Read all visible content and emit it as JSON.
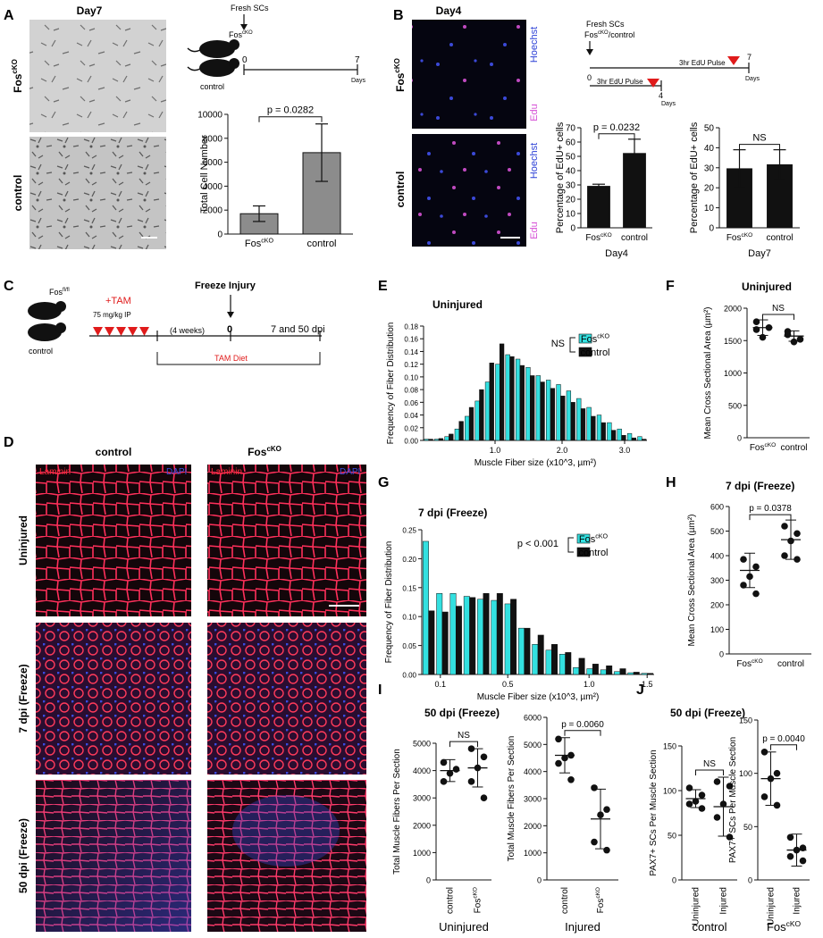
{
  "panels": [
    {
      "id": "A",
      "letter": "A"
    },
    {
      "id": "B",
      "letter": "B"
    },
    {
      "id": "C",
      "letter": "C"
    },
    {
      "id": "D",
      "letter": "D"
    },
    {
      "id": "E",
      "letter": "E"
    },
    {
      "id": "F",
      "letter": "F"
    },
    {
      "id": "G",
      "letter": "G"
    },
    {
      "id": "H",
      "letter": "H"
    },
    {
      "id": "I",
      "letter": "I"
    },
    {
      "id": "J",
      "letter": "J"
    }
  ],
  "colors": {
    "cyan": "#33e0e0",
    "black": "#111111",
    "gray": "#8c8c8c",
    "red": "#e01b1b",
    "magenta": "#d64fd6",
    "blue": "#2a3fd6",
    "laminin": "#ff2a3a",
    "dapi": "#3a4be0"
  },
  "text": {
    "A": {
      "day": "Day7",
      "row1": "Fos",
      "row1_sup": "cKO",
      "row2": "control",
      "fresh": "Fresh SCs",
      "t0": "0",
      "t7": "7",
      "days": "Days",
      "mouse1": "Fos",
      "mouse1_sup": "cKO",
      "mouse2": "control"
    },
    "B": {
      "day": "Day4",
      "row1": "Fos",
      "row1_sup": "cKO",
      "row2": "control",
      "hoechst": "Hoechst",
      "edu": "Edu",
      "fresh": "Fresh SCs",
      "fresh2": "Fos",
      "fresh2_sup": "cKO",
      "fresh2_tail": "/control",
      "pulse1": "3hr EdU Pulse",
      "pulse2": "3hr EdU Pulse",
      "t0": "0",
      "t4": "4",
      "t7": "7",
      "days1": "Days",
      "days2": "Days"
    },
    "C": {
      "mouse": "Fos",
      "mouse_sup": "fl/fl",
      "tam": "+TAM",
      "dose": "75 mg/kg IP",
      "mouse2": "control",
      "weeks": "(4 weeks)",
      "injury": "Freeze Injury",
      "t0": "0",
      "dpi": "7 and 50 dpi",
      "diet": "TAM Diet"
    },
    "D": {
      "col1": "control",
      "col2": "Fos",
      "col2_sup": "cKO",
      "row1": "Uninjured",
      "row2": "7 dpi (Freeze)",
      "row3": "50 dpi (Freeze)",
      "laminin": "Laminin",
      "dapi": "DAPI"
    }
  },
  "chart_data": [
    {
      "panel": "A",
      "type": "bar",
      "categories": [
        "Fos^cKO",
        "control"
      ],
      "values": [
        1700,
        6800
      ],
      "errors": [
        650,
        2400
      ],
      "ylabel": "Total Cell Number",
      "ylim": [
        0,
        10000
      ],
      "yticks": [
        "0",
        "2000",
        "4000",
        "6000",
        "8000",
        "10000"
      ],
      "annotation": "p = 0.0282"
    },
    {
      "panel": "B",
      "type": "bar",
      "categories": [
        "Fos^cKO",
        "control"
      ],
      "values": [
        29,
        52
      ],
      "errors": [
        1.5,
        10
      ],
      "ylabel": "Percentage of EdU+ cells",
      "ylim": [
        0,
        70
      ],
      "yticks": [
        "0",
        "10",
        "20",
        "30",
        "40",
        "50",
        "60",
        "70"
      ],
      "xlabel": "Day4",
      "annotation": "p = 0.0232"
    },
    {
      "panel": "B",
      "type": "bar",
      "categories": [
        "Fos^cKO",
        "control"
      ],
      "values": [
        29.5,
        31.5
      ],
      "errors": [
        9.5,
        7.5
      ],
      "ylabel": "Percentage of EdU+ cells",
      "ylim": [
        0,
        50
      ],
      "yticks": [
        "0",
        "10",
        "20",
        "30",
        "40",
        "50"
      ],
      "xlabel": "Day7",
      "annotation": "NS"
    },
    {
      "panel": "E",
      "type": "bar",
      "title": "Uninjured",
      "xlabel": "Muscle Fiber size (x10^3, µm²)",
      "ylabel": "Frequency of Fiber Distribution",
      "ylim": [
        0,
        0.18
      ],
      "yticks": [
        "0.00",
        "0.02",
        "0.04",
        "0.06",
        "0.08",
        "0.10",
        "0.12",
        "0.14",
        "0.16",
        "0.18"
      ],
      "xticks": [
        "1.0",
        "2.0",
        "3.0"
      ],
      "series": [
        {
          "name": "Fos^cKO",
          "values": [
            0.002,
            0.002,
            0.006,
            0.018,
            0.038,
            0.062,
            0.092,
            0.12,
            0.135,
            0.128,
            0.115,
            0.102,
            0.095,
            0.088,
            0.078,
            0.066,
            0.052,
            0.04,
            0.028,
            0.018,
            0.011,
            0.006
          ]
        },
        {
          "name": "control",
          "values": [
            0.002,
            0.003,
            0.01,
            0.03,
            0.052,
            0.08,
            0.122,
            0.152,
            0.132,
            0.118,
            0.102,
            0.092,
            0.082,
            0.07,
            0.06,
            0.05,
            0.038,
            0.028,
            0.016,
            0.008,
            0.004,
            0.002
          ]
        }
      ],
      "annotation": "NS"
    },
    {
      "panel": "F",
      "type": "scatter",
      "title": "Uninjured",
      "categories": [
        "Fos^cKO",
        "control"
      ],
      "points": [
        [
          1790,
          1700,
          1550,
          1670
        ],
        [
          1640,
          1520,
          1480,
          1590
        ]
      ],
      "means": [
        1700,
        1570
      ],
      "sd": [
        120,
        80
      ],
      "ylabel": "Mean Cross Sectional Area (µm²)",
      "ylim": [
        0,
        2000
      ],
      "yticks": [
        "0",
        "500",
        "1000",
        "1500",
        "2000"
      ],
      "annotation": "NS"
    },
    {
      "panel": "G",
      "type": "bar",
      "title": "7 dpi (Freeze)",
      "xlabel": "Muscle Fiber size (x10^3, µm²)",
      "ylabel": "Frequency of Fiber Distribution",
      "ylim": [
        0,
        0.25
      ],
      "yticks": [
        "0.00",
        "0.05",
        "0.10",
        "0.15",
        "0.20",
        "0.25"
      ],
      "xticks": [
        "0.1",
        "0.5",
        "1.0",
        "1.5"
      ],
      "series": [
        {
          "name": "Fos^cKO",
          "values": [
            0.23,
            0.14,
            0.14,
            0.135,
            0.13,
            0.128,
            0.122,
            0.08,
            0.052,
            0.042,
            0.035,
            0.012,
            0.01,
            0.008,
            0.005,
            0.003,
            0.002
          ]
        },
        {
          "name": "control",
          "values": [
            0.11,
            0.108,
            0.118,
            0.133,
            0.14,
            0.14,
            0.13,
            0.08,
            0.068,
            0.052,
            0.038,
            0.028,
            0.018,
            0.015,
            0.01,
            0.004,
            0.002
          ]
        }
      ],
      "annotation": "p < 0.001"
    },
    {
      "panel": "H",
      "type": "scatter",
      "title": "7 dpi (Freeze)",
      "categories": [
        "Fos^cKO",
        "control"
      ],
      "points": [
        [
          385,
          355,
          315,
          280,
          245
        ],
        [
          520,
          490,
          460,
          400,
          385
        ]
      ],
      "means": [
        340,
        465
      ],
      "sd": [
        70,
        80
      ],
      "ylabel": "Mean Cross Sectional Area (µm²)",
      "ylim": [
        0,
        600
      ],
      "yticks": [
        "0",
        "100",
        "200",
        "300",
        "400",
        "500",
        "600"
      ],
      "annotation": "p = 0.0378"
    },
    {
      "panel": "I",
      "type": "scatter",
      "title": "50 dpi (Freeze)",
      "categories": [
        "control",
        "Fos^cKO"
      ],
      "points": [
        [
          4300,
          4050,
          3900,
          3600
        ],
        [
          4800,
          4500,
          4100,
          3600,
          3000
        ]
      ],
      "means": [
        4000,
        4100
      ],
      "sd": [
        400,
        700
      ],
      "ylabel": "Total Muscle Fibers Per Section",
      "ylim": [
        0,
        5000
      ],
      "yticks": [
        "0",
        "1000",
        "2000",
        "3000",
        "4000",
        "5000"
      ],
      "xlabel": "Uninjured",
      "annotation": "NS"
    },
    {
      "panel": "I",
      "type": "scatter",
      "categories": [
        "control",
        "Fos^cKO"
      ],
      "points": [
        [
          5200,
          4600,
          4500,
          4300,
          3700
        ],
        [
          3400,
          2600,
          2400,
          1400,
          1100
        ]
      ],
      "means": [
        4600,
        2250
      ],
      "sd": [
        650,
        1100
      ],
      "ylabel": "Total Muscle Fibers Per Section",
      "ylim": [
        0,
        6000
      ],
      "yticks": [
        "0",
        "1000",
        "2000",
        "3000",
        "4000",
        "5000",
        "6000"
      ],
      "xlabel": "Injured",
      "annotation": "p = 0.0060"
    },
    {
      "panel": "J",
      "type": "scatter",
      "title": "50 dpi (Freeze)",
      "categories": [
        "Uninjured",
        "Injured"
      ],
      "points": [
        [
          103,
          95,
          88,
          85,
          80
        ],
        [
          110,
          105,
          85,
          70,
          48
        ]
      ],
      "means": [
        91,
        82
      ],
      "sd": [
        10,
        33
      ],
      "ylabel": "PAX7+ SCs Per Muscle Section",
      "ylim": [
        0,
        150
      ],
      "yticks": [
        "0",
        "50",
        "100",
        "150"
      ],
      "xlabel": "control",
      "annotation": "NS"
    },
    {
      "panel": "J",
      "type": "scatter",
      "categories": [
        "Uninjured",
        "Injured"
      ],
      "points": [
        [
          120,
          100,
          95,
          78,
          70
        ],
        [
          40,
          30,
          28,
          22,
          18
        ]
      ],
      "means": [
        95,
        28
      ],
      "sd": [
        25,
        15
      ],
      "ylabel": "PAX7+ SCs Per Muscle Section",
      "ylim": [
        0,
        150
      ],
      "yticks": [
        "0",
        "50",
        "100",
        "150"
      ],
      "xlabel": "Fos^cKO",
      "annotation": "p = 0.0040"
    }
  ]
}
